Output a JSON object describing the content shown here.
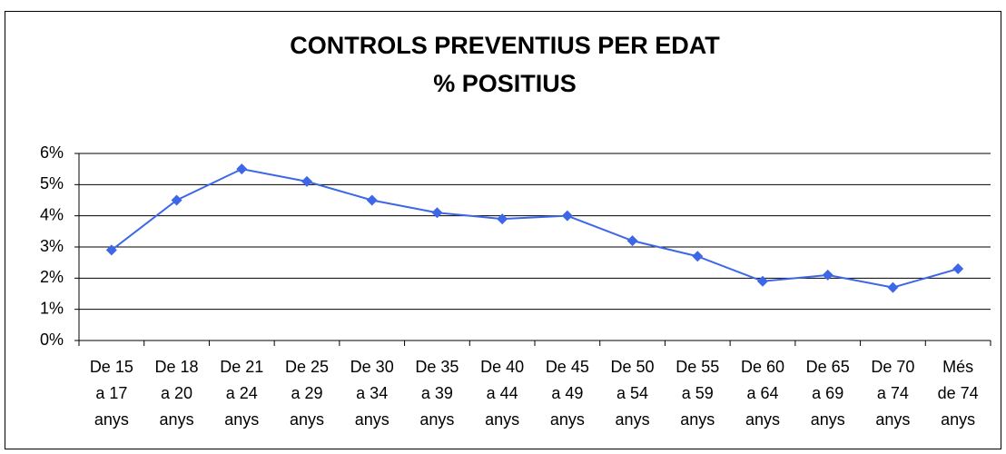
{
  "chart_data": {
    "type": "line",
    "title": "CONTROLS PREVENTIUS PER EDAT",
    "subtitle": "% POSITIUS",
    "categories": [
      "De 15 a 17 anys",
      "De 18 a 20 anys",
      "De 21 a 24 anys",
      "De 25 a 29 anys",
      "De 30 a 34 anys",
      "De 35 a 39 anys",
      "De 40 a 44 anys",
      "De 45 a 49 anys",
      "De 50 a 54 anys",
      "De 55 a 59 anys",
      "De 60 a 64 anys",
      "De 65 a 69 anys",
      "De 70 a 74 anys",
      "Més de 74 anys"
    ],
    "values": [
      2.9,
      4.5,
      5.5,
      5.1,
      4.5,
      4.1,
      3.9,
      4.0,
      3.2,
      2.7,
      1.9,
      2.1,
      1.7,
      2.3
    ],
    "color": "#3d67e6",
    "ylim": [
      0,
      6
    ],
    "yticks": [
      {
        "value": 0,
        "label": "0%"
      },
      {
        "value": 1,
        "label": "1%"
      },
      {
        "value": 2,
        "label": "2%"
      },
      {
        "value": 3,
        "label": "3%"
      },
      {
        "value": 4,
        "label": "4%"
      },
      {
        "value": 5,
        "label": "5%"
      },
      {
        "value": 6,
        "label": "6%"
      }
    ],
    "grid": true
  }
}
